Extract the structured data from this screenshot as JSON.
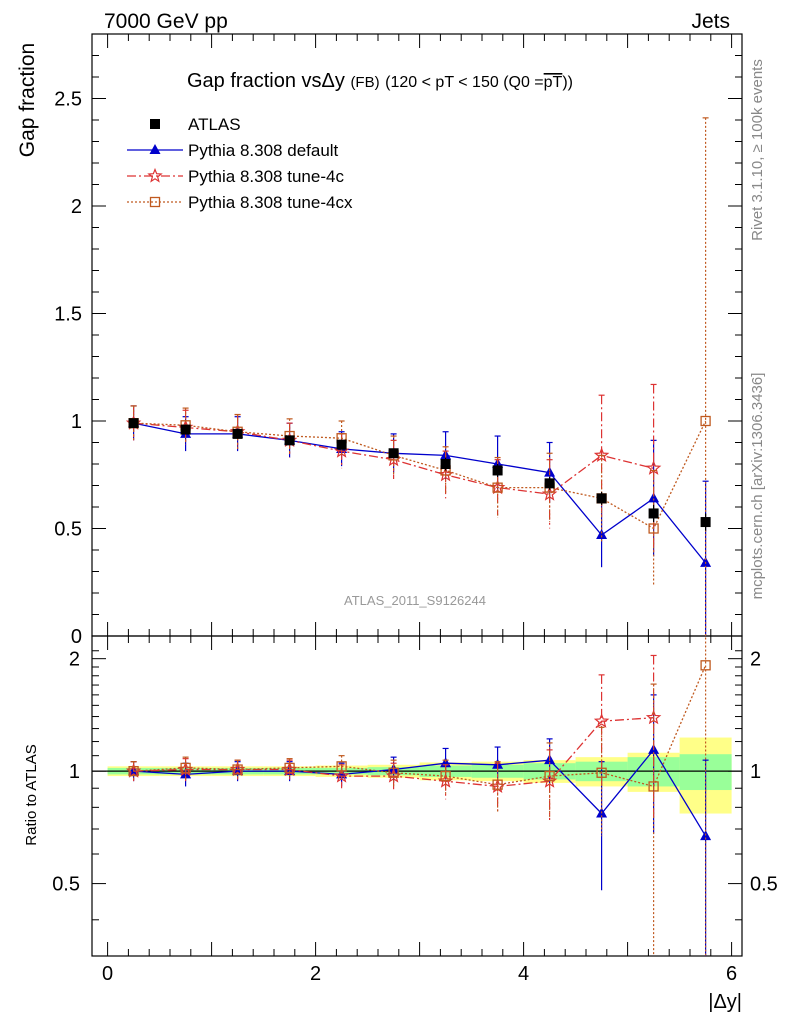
{
  "header": {
    "left": "7000 GeV pp",
    "right": "Jets"
  },
  "plot_title": {
    "main": "Gap fraction vsΔy",
    "small": "(FB)",
    "cut": "(120 < pT < 150 (Q0 =",
    "cut_over": "pT",
    "cut_close": "))"
  },
  "side_labels": {
    "rivet": "Rivet 3.1.10, ≥ 100k events",
    "mcplots": "mcplots.cern.ch [arXiv:1306.3436]"
  },
  "watermark": "ATLAS_2011_S9126244",
  "colors": {
    "atlas": "#000000",
    "default": "#0000cc",
    "tune4c": "#dd3333",
    "tune4cx": "#c05a20",
    "band_inner": "#99ff99",
    "band_outer": "#ffff88"
  },
  "chart_data": [
    {
      "type": "line",
      "panel": "main",
      "ylabel": "Gap fraction",
      "xlim": [
        -0.15,
        6.1
      ],
      "ylim": [
        0,
        2.8
      ],
      "y_ticks": [
        0,
        0.5,
        1,
        1.5,
        2,
        2.5
      ],
      "y_tick_labels": [
        "0",
        "0.5",
        "1",
        "1.5",
        "2",
        "2.5"
      ],
      "x": [
        0.25,
        0.75,
        1.25,
        1.75,
        2.25,
        2.75,
        3.25,
        3.75,
        4.25,
        4.75,
        5.25,
        5.75
      ],
      "series": [
        {
          "name": "ATLAS",
          "style": "data",
          "marker": "square-filled",
          "values": [
            0.99,
            0.96,
            0.94,
            0.91,
            0.89,
            0.85,
            0.8,
            0.77,
            0.71,
            0.64,
            0.57,
            0.53
          ],
          "errors": [
            0.02,
            0.02,
            0.02,
            0.02,
            0.02,
            0.02,
            0.03,
            0.03,
            0.03,
            0.03,
            0.04,
            0.04
          ]
        },
        {
          "name": "Pythia 8.308 default",
          "style": "solid",
          "marker": "triangle-filled",
          "values": [
            0.99,
            0.94,
            0.94,
            0.91,
            0.87,
            0.85,
            0.84,
            0.8,
            0.76,
            0.47,
            0.64,
            0.34
          ],
          "errors": [
            0.08,
            0.08,
            0.08,
            0.08,
            0.08,
            0.09,
            0.11,
            0.13,
            0.14,
            0.15,
            0.27,
            0.38
          ]
        },
        {
          "name": "Pythia 8.308 tune-4c",
          "style": "dashdot",
          "marker": "star-open",
          "values": [
            0.99,
            0.97,
            0.95,
            0.91,
            0.86,
            0.82,
            0.75,
            0.69,
            0.66,
            0.84,
            0.78,
            null
          ],
          "errors": [
            0.08,
            0.08,
            0.08,
            0.08,
            0.08,
            0.09,
            0.11,
            0.13,
            0.16,
            0.28,
            0.39,
            null
          ]
        },
        {
          "name": "Pythia 8.308 tune-4cx",
          "style": "dotted",
          "marker": "square-open",
          "values": [
            0.99,
            0.98,
            0.95,
            0.93,
            0.92,
            0.84,
            0.77,
            0.69,
            0.69,
            0.64,
            0.5,
            1.0
          ],
          "errors": [
            0.08,
            0.08,
            0.08,
            0.08,
            0.08,
            0.09,
            0.11,
            0.14,
            0.16,
            0.2,
            0.27,
            1.41
          ]
        }
      ]
    },
    {
      "type": "line",
      "panel": "ratio",
      "xlabel": "|Δy|",
      "ylabel": "Ratio to ATLAS",
      "xlim": [
        -0.15,
        6.1
      ],
      "ylim": [
        0.32,
        2.3
      ],
      "x_ticks": [
        0,
        2,
        4,
        6
      ],
      "x_tick_labels": [
        "0",
        "2",
        "4",
        "6"
      ],
      "y_ticks": [
        0.5,
        1,
        2
      ],
      "y_tick_labels": [
        "0.5",
        "1",
        "2"
      ],
      "x": [
        0.25,
        0.75,
        1.25,
        1.75,
        2.25,
        2.75,
        3.25,
        3.75,
        4.25,
        4.75,
        5.25,
        5.75
      ],
      "bands": {
        "inner": [
          0.02,
          0.02,
          0.02,
          0.02,
          0.02,
          0.025,
          0.035,
          0.04,
          0.05,
          0.06,
          0.09,
          0.11
        ],
        "outer": [
          0.03,
          0.03,
          0.03,
          0.03,
          0.035,
          0.04,
          0.055,
          0.06,
          0.07,
          0.09,
          0.12,
          0.23
        ]
      },
      "series": [
        {
          "name": "Pythia 8.308 default",
          "style": "solid",
          "marker": "triangle-filled",
          "values": [
            1.0,
            0.98,
            1.0,
            1.0,
            0.98,
            1.01,
            1.05,
            1.04,
            1.07,
            0.77,
            1.14,
            0.67
          ],
          "errors": [
            0.06,
            0.07,
            0.06,
            0.06,
            0.07,
            0.08,
            0.1,
            0.12,
            0.15,
            0.29,
            0.46,
            0.4
          ]
        },
        {
          "name": "Pythia 8.308 tune-4c",
          "style": "dashdot",
          "marker": "star-open",
          "values": [
            1.0,
            1.01,
            1.01,
            1.01,
            0.97,
            0.97,
            0.94,
            0.91,
            0.94,
            1.36,
            1.39,
            null
          ],
          "errors": [
            0.06,
            0.07,
            0.06,
            0.06,
            0.07,
            0.08,
            0.1,
            0.14,
            0.2,
            0.45,
            0.65,
            null
          ]
        },
        {
          "name": "Pythia 8.308 tune-4cx",
          "style": "dotted",
          "marker": "square-open",
          "values": [
            1.0,
            1.02,
            1.01,
            1.02,
            1.03,
            0.99,
            0.97,
            0.92,
            0.97,
            0.99,
            0.91,
            1.92
          ],
          "errors": [
            0.06,
            0.07,
            0.06,
            0.06,
            0.07,
            0.08,
            0.1,
            0.14,
            0.22,
            0.32,
            0.8,
            2.0
          ]
        }
      ]
    }
  ]
}
